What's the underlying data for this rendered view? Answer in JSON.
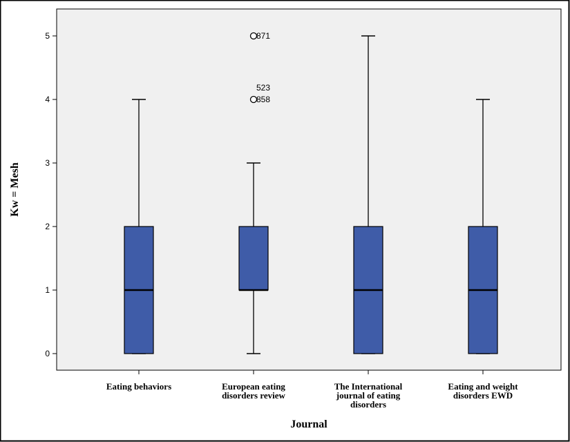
{
  "chart_data": {
    "type": "boxplot",
    "xlabel": "Journal",
    "ylabel": "Kw = Mesh",
    "ylim": [
      0,
      5
    ],
    "yticks": [
      "0",
      "1",
      "2",
      "3",
      "4",
      "5"
    ],
    "categories": [
      [
        "Eating behaviors"
      ],
      [
        "European eating",
        "disorders review"
      ],
      [
        "The International",
        "journal of eating",
        "disorders"
      ],
      [
        "Eating and weight",
        "disorders EWD"
      ]
    ],
    "boxes": [
      {
        "min": 0,
        "q1": 0,
        "median": 1,
        "q3": 2,
        "max": 4
      },
      {
        "min": 0,
        "q1": 1,
        "median": 1,
        "q3": 2,
        "max": 3
      },
      {
        "min": 0,
        "q1": 0,
        "median": 1,
        "q3": 2,
        "max": 5
      },
      {
        "min": 0,
        "q1": 0,
        "median": 1,
        "q3": 2,
        "max": 4
      }
    ],
    "outliers": [
      {
        "box": 1,
        "y": 5,
        "labels": [
          "871"
        ]
      },
      {
        "box": 1,
        "y": 4,
        "labels": [
          "523",
          "858"
        ]
      }
    ],
    "colors": {
      "box_fill": "#3f5ca8",
      "plot_bg": "#f0f0f0"
    },
    "grid": false
  }
}
